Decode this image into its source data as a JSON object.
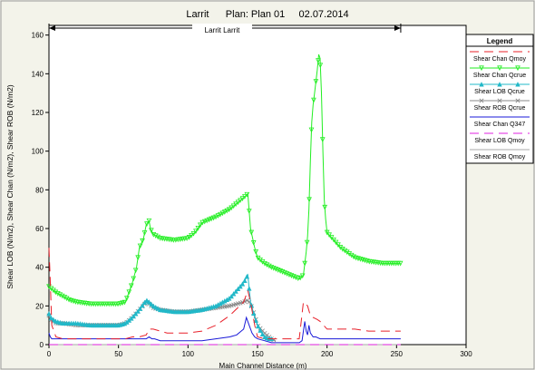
{
  "chart_data": {
    "type": "line",
    "title": "Larrit      Plan: Plan 01     02.07.2014",
    "reach_label": "Larrit Larrit",
    "xlabel": "Main Channel Distance (m)",
    "ylabel": "Shear LOB (N/m2), Shear Chan (N/m2), Shear ROB (N/m2)",
    "xlim": [
      0,
      300
    ],
    "ylim": [
      0,
      165
    ],
    "xticks": [
      0,
      50,
      100,
      150,
      200,
      250,
      300
    ],
    "yticks": [
      0,
      20,
      40,
      60,
      80,
      100,
      120,
      140,
      160
    ],
    "reach_extent": [
      0,
      253
    ],
    "legend_title": "Legend",
    "legend_position": "right",
    "series": [
      {
        "name": "Shear Chan Qmoy",
        "color": "#e8202a",
        "dash": "10,6",
        "marker": "none",
        "x": [
          0,
          0.8,
          2,
          5,
          10,
          20,
          30,
          40,
          50,
          55,
          60,
          65,
          70,
          72,
          75,
          80,
          85,
          90,
          100,
          110,
          120,
          130,
          140,
          143,
          145,
          148,
          150,
          155,
          160,
          170,
          180,
          183,
          186,
          188,
          190,
          193,
          195,
          200,
          210,
          220,
          230,
          240,
          253
        ],
        "y": [
          50,
          36,
          10,
          4,
          3,
          3,
          3,
          3,
          3,
          3,
          4,
          4,
          5,
          8,
          8,
          7,
          6,
          6,
          6,
          7,
          10,
          15,
          22,
          28,
          22,
          10,
          4,
          3,
          3,
          3,
          3,
          22,
          20,
          15,
          14,
          13,
          12,
          8,
          8,
          8,
          7,
          7,
          7
        ]
      },
      {
        "name": "Shear Chan Qcrue",
        "color": "#22ee22",
        "dash": "",
        "marker": "triangle-down",
        "x": [
          0,
          5,
          10,
          15,
          20,
          30,
          40,
          50,
          55,
          60,
          63,
          65,
          68,
          70,
          72,
          73,
          75,
          80,
          90,
          100,
          105,
          108,
          110,
          120,
          130,
          140,
          143,
          145,
          148,
          150,
          155,
          160,
          170,
          180,
          183,
          185,
          186,
          187,
          188,
          189,
          190,
          191,
          192,
          193,
          194,
          195,
          196,
          197,
          198,
          199,
          200,
          210,
          220,
          230,
          240,
          253
        ],
        "y": [
          30,
          27,
          25,
          23,
          22,
          21,
          21,
          21,
          22,
          32,
          40,
          50,
          55,
          62,
          64,
          60,
          57,
          55,
          54,
          55,
          58,
          61,
          63,
          66,
          70,
          76,
          78,
          60,
          50,
          45,
          42,
          40,
          37,
          34,
          36,
          48,
          56,
          70,
          95,
          115,
          124,
          130,
          136,
          142,
          150,
          148,
          130,
          100,
          75,
          65,
          58,
          50,
          45,
          43,
          42,
          42
        ]
      },
      {
        "name": "Shear LOB Qcrue",
        "color": "#22b8c8",
        "dash": "",
        "marker": "triangle-up",
        "x": [
          0,
          1,
          3,
          5,
          10,
          20,
          30,
          40,
          50,
          55,
          60,
          65,
          70,
          72,
          75,
          80,
          90,
          100,
          110,
          120,
          130,
          135,
          140,
          143,
          145,
          148,
          150,
          153,
          155,
          158,
          160
        ],
        "y": [
          16,
          14,
          13,
          12,
          11,
          11,
          10,
          10,
          10,
          11,
          14,
          18,
          23,
          22,
          20,
          18,
          17,
          17,
          18,
          20,
          24,
          28,
          32,
          36,
          22,
          14,
          10,
          6,
          4,
          3,
          3
        ]
      },
      {
        "name": "Shear ROB Qcrue",
        "color": "#888888",
        "dash": "",
        "marker": "x",
        "x": [
          0,
          1,
          3,
          5,
          10,
          20,
          30,
          40,
          50,
          55,
          60,
          65,
          70,
          72,
          75,
          80,
          90,
          100,
          110,
          120,
          130,
          140,
          143,
          145,
          148,
          150,
          155,
          160,
          163
        ],
        "y": [
          15,
          13,
          12,
          11,
          11,
          10,
          10,
          10,
          10,
          11,
          14,
          18,
          22,
          21,
          19,
          18,
          17,
          17,
          18,
          19,
          20,
          22,
          23,
          21,
          15,
          10,
          6,
          3,
          2
        ]
      },
      {
        "name": "Shear Chan Q347",
        "color": "#1a1ad8",
        "dash": "",
        "marker": "none",
        "x": [
          0,
          1,
          2,
          5,
          10,
          20,
          30,
          40,
          50,
          55,
          60,
          65,
          70,
          72,
          74,
          76,
          80,
          90,
          100,
          110,
          120,
          130,
          135,
          140,
          142,
          144,
          146,
          148,
          150,
          155,
          160,
          170,
          180,
          182,
          184,
          185,
          186,
          187,
          188,
          190,
          192,
          195,
          200,
          210,
          220,
          230,
          240,
          253
        ],
        "y": [
          6,
          4,
          3,
          3,
          3,
          3,
          3,
          3,
          3,
          3,
          3,
          3,
          3,
          4,
          3,
          3,
          2,
          2,
          2,
          2,
          3,
          4,
          5,
          8,
          14,
          10,
          6,
          4,
          3,
          2,
          1,
          1,
          1,
          2,
          12,
          7,
          5,
          10,
          6,
          4,
          4,
          3,
          3,
          3,
          3,
          3,
          3,
          3
        ]
      },
      {
        "name": "Shear LOB Qmoy",
        "color": "#e020e0",
        "dash": "10,6",
        "marker": "none",
        "x": [
          0,
          253
        ],
        "y": [
          0,
          0
        ]
      },
      {
        "name": "Shear ROB Qmoy",
        "color": "#aaaaaa",
        "dash": "",
        "marker": "none",
        "x": [
          0,
          253
        ],
        "y": [
          0,
          0
        ]
      }
    ]
  }
}
